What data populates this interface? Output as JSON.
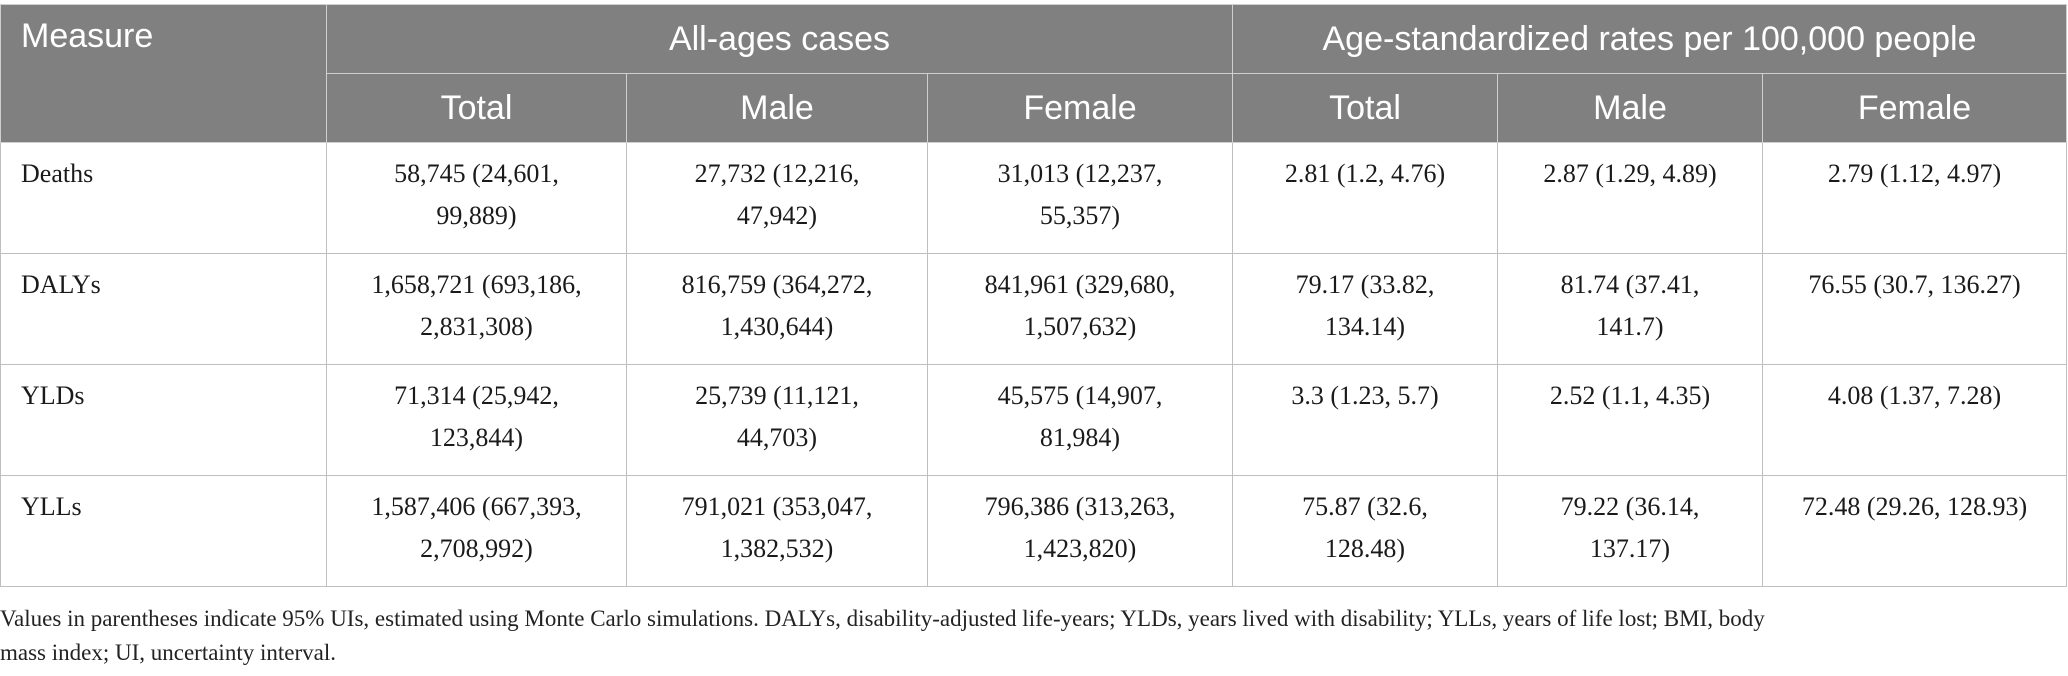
{
  "table": {
    "header": {
      "measure": "Measure",
      "group_all_ages": "All-ages cases",
      "group_age_std": "Age-standardized rates per 100,000 people",
      "sub_columns": [
        "Total",
        "Male",
        "Female",
        "Total",
        "Male",
        "Female"
      ]
    },
    "rows": [
      {
        "measure": "Deaths",
        "cells": [
          [
            "58,745 (24,601,",
            "99,889)"
          ],
          [
            "27,732 (12,216,",
            "47,942)"
          ],
          [
            "31,013 (12,237,",
            "55,357)"
          ],
          [
            "2.81 (1.2, 4.76)"
          ],
          [
            "2.87 (1.29, 4.89)"
          ],
          [
            "2.79 (1.12, 4.97)"
          ]
        ]
      },
      {
        "measure": "DALYs",
        "cells": [
          [
            "1,658,721 (693,186,",
            "2,831,308)"
          ],
          [
            "816,759 (364,272,",
            "1,430,644)"
          ],
          [
            "841,961 (329,680,",
            "1,507,632)"
          ],
          [
            "79.17 (33.82,",
            "134.14)"
          ],
          [
            "81.74 (37.41,",
            "141.7)"
          ],
          [
            "76.55 (30.7, 136.27)"
          ]
        ]
      },
      {
        "measure": "YLDs",
        "cells": [
          [
            "71,314 (25,942,",
            "123,844)"
          ],
          [
            "25,739 (11,121,",
            "44,703)"
          ],
          [
            "45,575 (14,907,",
            "81,984)"
          ],
          [
            "3.3 (1.23, 5.7)"
          ],
          [
            "2.52 (1.1, 4.35)"
          ],
          [
            "4.08 (1.37, 7.28)"
          ]
        ]
      },
      {
        "measure": "YLLs",
        "cells": [
          [
            "1,587,406 (667,393,",
            "2,708,992)"
          ],
          [
            "791,021 (353,047,",
            "1,382,532)"
          ],
          [
            "796,386 (313,263,",
            "1,423,820)"
          ],
          [
            "75.87 (32.6,",
            "128.48)"
          ],
          [
            "79.22 (36.14,",
            "137.17)"
          ],
          [
            "72.48 (29.26, 128.93)"
          ]
        ]
      }
    ]
  },
  "footnote": {
    "line1": "Values in parentheses indicate 95% UIs, estimated using Monte Carlo simulations. DALYs, disability-adjusted life-years; YLDs, years lived with disability; YLLs, years of life lost; BMI, body",
    "line2": "mass index; UI, uncertainty interval."
  }
}
